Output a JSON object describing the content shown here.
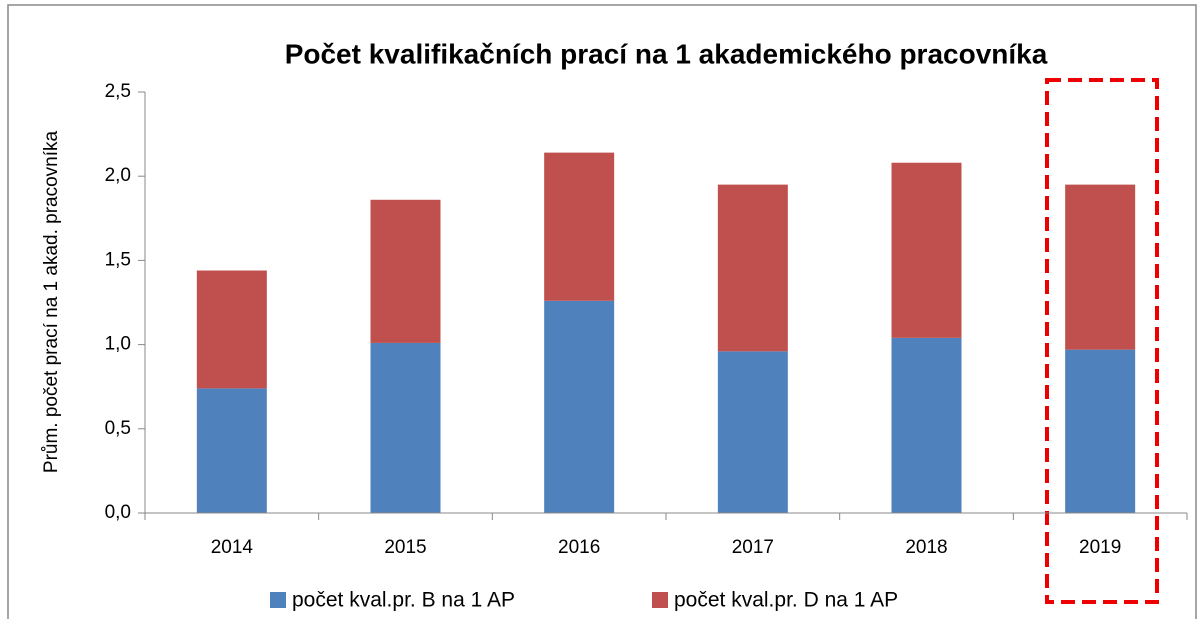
{
  "chart_data": {
    "type": "stacked_bar",
    "title": "Počet kvalifikačních prací na 1 akademického pracovníka",
    "y_label": "Prům. počet prací na 1 akad. pracovníka",
    "categories": [
      "2014",
      "2015",
      "2016",
      "2017",
      "2018",
      "2019"
    ],
    "series": [
      {
        "name": "počet kval.pr. B na 1 AP",
        "color": "#4f81bd",
        "values": [
          0.74,
          1.01,
          1.26,
          0.96,
          1.04,
          0.97
        ]
      },
      {
        "name": "počet kval.pr. D na 1 AP",
        "color": "#c0504d",
        "values": [
          0.7,
          0.85,
          0.88,
          0.99,
          1.04,
          0.98
        ]
      }
    ],
    "ylim": [
      0,
      2.5
    ],
    "yticks": [
      {
        "value": 0,
        "label": "0,0"
      },
      {
        "value": 0.5,
        "label": "0,5"
      },
      {
        "value": 1,
        "label": "1,0"
      },
      {
        "value": 1.5,
        "label": "1,5"
      },
      {
        "value": 2,
        "label": "2,0"
      },
      {
        "value": 2.5,
        "label": "2,5"
      }
    ],
    "legend": "bottom"
  }
}
